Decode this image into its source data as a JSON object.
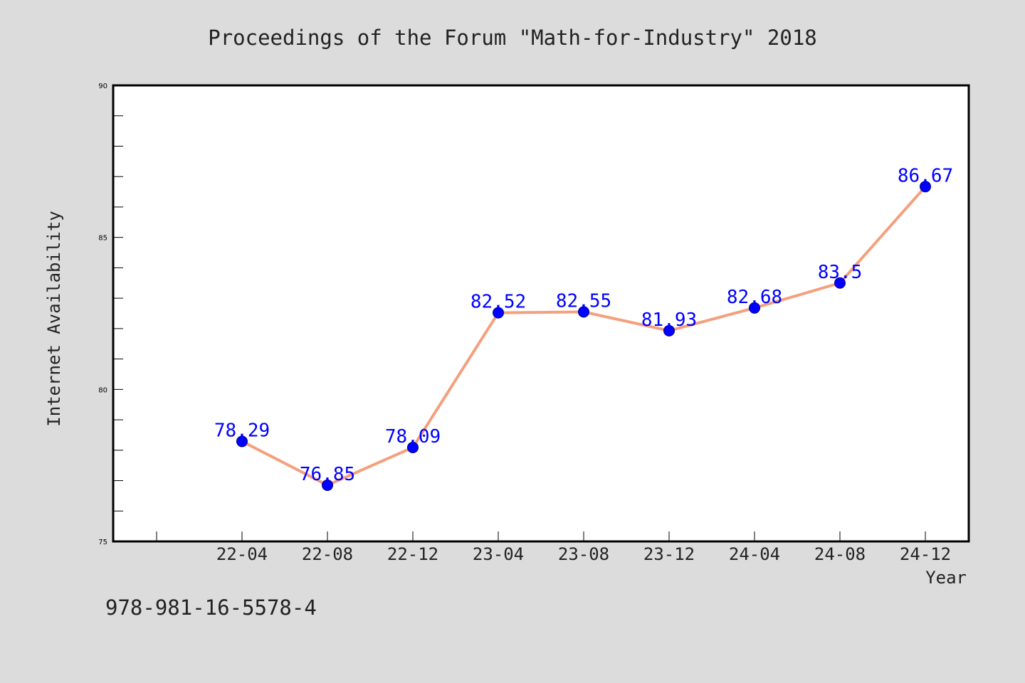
{
  "colors": {
    "background": "#dcdcdc",
    "plot_background": "#ffffff",
    "line": "#f4a07e",
    "marker": "#0000ff",
    "data_label": "#0000ff",
    "text": "#222222"
  },
  "footer": {
    "isbn": "978-981-16-5578-4"
  },
  "chart_data": {
    "type": "line",
    "title": "Proceedings of the Forum \"Math-for-Industry\" 2018",
    "xlabel": "Year",
    "ylabel": "Internet Availability",
    "categories": [
      "22-04",
      "22-08",
      "22-12",
      "23-04",
      "23-08",
      "23-12",
      "24-04",
      "24-08",
      "24-12"
    ],
    "series": [
      {
        "values": [
          78.29,
          76.85,
          78.09,
          82.52,
          82.55,
          81.93,
          82.68,
          83.5,
          86.67
        ],
        "labels": [
          "78.29",
          "76.85",
          "78.09",
          "82.52",
          "82.55",
          "81.93",
          "82.68",
          "83.5",
          "86.67"
        ]
      }
    ],
    "ylim": [
      75,
      90
    ],
    "yticks": [
      75,
      80,
      85,
      90
    ],
    "ytick_labels": [
      "75",
      "80",
      "85",
      "90"
    ],
    "y_minor_step": 1,
    "grid": false,
    "legend": "none"
  }
}
